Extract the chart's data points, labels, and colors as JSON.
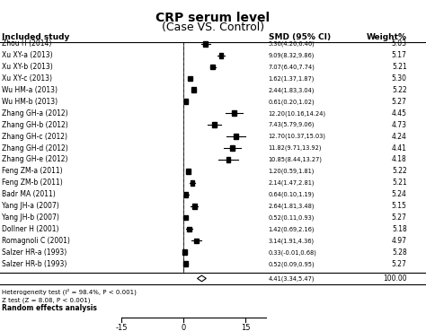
{
  "title": "CRP serum level",
  "subtitle": "(Case VS. Control)",
  "studies": [
    {
      "name": "Zhou H (2014)",
      "smd": 5.36,
      "ci_low": 4.26,
      "ci_high": 6.46,
      "weight": 5.03
    },
    {
      "name": "Xu XY-a (2013)",
      "smd": 9.09,
      "ci_low": 8.32,
      "ci_high": 9.86,
      "weight": 5.17
    },
    {
      "name": "Xu XY-b (2013)",
      "smd": 7.07,
      "ci_low": 6.4,
      "ci_high": 7.74,
      "weight": 5.21
    },
    {
      "name": "Xu XY-c (2013)",
      "smd": 1.62,
      "ci_low": 1.37,
      "ci_high": 1.87,
      "weight": 5.3
    },
    {
      "name": "Wu HM-a (2013)",
      "smd": 2.44,
      "ci_low": 1.83,
      "ci_high": 3.04,
      "weight": 5.22
    },
    {
      "name": "Wu HM-b (2013)",
      "smd": 0.61,
      "ci_low": 0.2,
      "ci_high": 1.02,
      "weight": 5.27
    },
    {
      "name": "Zhang GH-a (2012)",
      "smd": 12.2,
      "ci_low": 10.16,
      "ci_high": 14.24,
      "weight": 4.45
    },
    {
      "name": "Zhang GH-b (2012)",
      "smd": 7.43,
      "ci_low": 5.79,
      "ci_high": 9.06,
      "weight": 4.73
    },
    {
      "name": "Zhang GH-c (2012)",
      "smd": 12.7,
      "ci_low": 10.37,
      "ci_high": 15.03,
      "weight": 4.24
    },
    {
      "name": "Zhang GH-d (2012)",
      "smd": 11.82,
      "ci_low": 9.71,
      "ci_high": 13.92,
      "weight": 4.41
    },
    {
      "name": "Zhang GH-e (2012)",
      "smd": 10.85,
      "ci_low": 8.44,
      "ci_high": 13.27,
      "weight": 4.18
    },
    {
      "name": "Feng ZM-a (2011)",
      "smd": 1.2,
      "ci_low": 0.59,
      "ci_high": 1.81,
      "weight": 5.22
    },
    {
      "name": "Feng ZM-b (2011)",
      "smd": 2.14,
      "ci_low": 1.47,
      "ci_high": 2.81,
      "weight": 5.21
    },
    {
      "name": "Badr MA (2011)",
      "smd": 0.64,
      "ci_low": 0.1,
      "ci_high": 1.19,
      "weight": 5.24
    },
    {
      "name": "Yang JH-a (2007)",
      "smd": 2.64,
      "ci_low": 1.81,
      "ci_high": 3.48,
      "weight": 5.15
    },
    {
      "name": "Yang JH-b (2007)",
      "smd": 0.52,
      "ci_low": 0.11,
      "ci_high": 0.93,
      "weight": 5.27
    },
    {
      "name": "Dollner H (2001)",
      "smd": 1.42,
      "ci_low": 0.69,
      "ci_high": 2.16,
      "weight": 5.18
    },
    {
      "name": "Romagnoli C (2001)",
      "smd": 3.14,
      "ci_low": 1.91,
      "ci_high": 4.36,
      "weight": 4.97
    },
    {
      "name": "Salzer HR-a (1993)",
      "smd": 0.33,
      "ci_low": -0.01,
      "ci_high": 0.68,
      "weight": 5.28
    },
    {
      "name": "Salzer HR-b (1993)",
      "smd": 0.52,
      "ci_low": 0.09,
      "ci_high": 0.95,
      "weight": 5.27
    }
  ],
  "pooled": {
    "smd": 4.41,
    "ci_low": 3.34,
    "ci_high": 5.47,
    "weight": 100.0
  },
  "heterogeneity_text": "Heterogeneity test (I² = 98.4%, P < 0.001)",
  "ztest_text": "Z test (Z = 8.08, P < 0.001)",
  "random_effects_text": "Random effects analysis",
  "xticks": [
    -15,
    0,
    15
  ],
  "xdata_min": -15,
  "xdata_max": 20,
  "bg_color": "#ffffff",
  "text_color": "#000000"
}
